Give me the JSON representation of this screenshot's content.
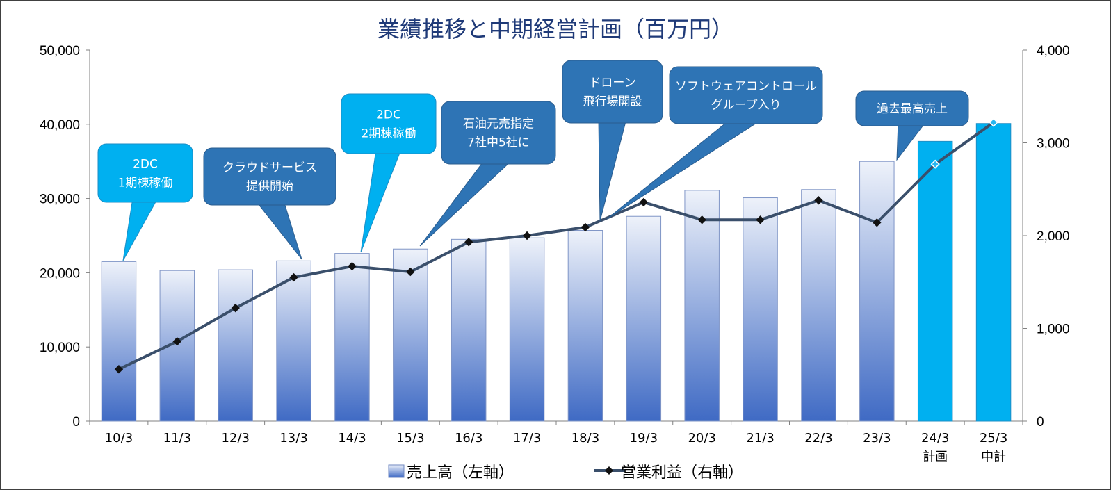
{
  "chart_data": {
    "type": "bar",
    "title": "業績推移と中期経営計画（百万円）",
    "categories": [
      "10/3",
      "11/3",
      "12/3",
      "13/3",
      "14/3",
      "15/3",
      "16/3",
      "17/3",
      "18/3",
      "19/3",
      "20/3",
      "21/3",
      "22/3",
      "23/3",
      "24/3\n計画",
      "25/3\n中計"
    ],
    "series": [
      {
        "name": "売上高（左軸）",
        "kind": "bar",
        "axis": "left",
        "values": [
          21500,
          20300,
          20400,
          21600,
          22600,
          23200,
          24500,
          24700,
          25700,
          27600,
          31100,
          30100,
          31200,
          35000,
          37700,
          40100
        ]
      },
      {
        "name": "営業利益（右軸）",
        "kind": "line",
        "axis": "right",
        "values": [
          560,
          860,
          1220,
          1550,
          1670,
          1610,
          1930,
          2000,
          2090,
          2360,
          2170,
          2170,
          2380,
          2140,
          2770,
          3220
        ]
      }
    ],
    "left_axis": {
      "min": 0,
      "max": 50000,
      "ticks": [
        "0",
        "10,000",
        "20,000",
        "30,000",
        "40,000",
        "50,000"
      ]
    },
    "right_axis": {
      "min": 0,
      "max": 4000,
      "ticks": [
        "0",
        "1,000",
        "2,000",
        "3,000",
        "4,000"
      ]
    },
    "plan_categories": [
      "24/3\n計画",
      "25/3\n中計"
    ],
    "grid": false,
    "legend_position": "bottom",
    "annotations": [
      {
        "text": "2DC\n1期棟稼働",
        "category": "10/3",
        "style": "light"
      },
      {
        "text": "クラウドサービス\n提供開始",
        "category": "13/3",
        "style": "dark"
      },
      {
        "text": "2DC\n2期棟稼働",
        "category": "14/3",
        "style": "light"
      },
      {
        "text": "石油元売指定\n7社中5社に",
        "category": "15/3",
        "style": "dark"
      },
      {
        "text": "ドローン\n飛行場開設",
        "category": "18/3",
        "style": "dark"
      },
      {
        "text": "ソフトウェアコントロール\nグループ入り",
        "category": "18/3",
        "style": "dark"
      },
      {
        "text": "過去最高売上",
        "category": "23/3",
        "style": "dark"
      }
    ],
    "colors": {
      "bar_top": "#eef2fa",
      "bar_bottom": "#3f6ac4",
      "plan_bar": "#00b0f0",
      "line": "#3a4f6b",
      "marker": "#111111",
      "callout_dark": "#2e74b5",
      "callout_light": "#00b0f0",
      "title": "#1f3a78"
    }
  }
}
